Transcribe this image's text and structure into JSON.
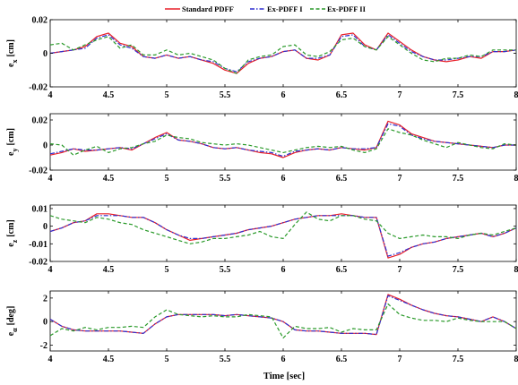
{
  "legend": {
    "items": [
      {
        "label": "Standard PDFF",
        "color": "#e8202a",
        "dash": "solid"
      },
      {
        "label": "Ex-PDFF I",
        "color": "#2f2fd0",
        "dash": "dashdot"
      },
      {
        "label": "Ex-PDFF II",
        "color": "#2a9a2a",
        "dash": "dashed"
      }
    ]
  },
  "xlabel": "Time [sec]",
  "chart_data": [
    {
      "type": "line",
      "ylabel_main": "e",
      "ylabel_sub": "x",
      "ylabel_unit": "[cm]",
      "xlim": [
        4,
        8
      ],
      "ylim": [
        -0.02,
        0.02
      ],
      "xticks": [
        "4",
        "4.5",
        "5",
        "5.5",
        "6",
        "6.5",
        "7",
        "7.5",
        "8"
      ],
      "yticks": [
        {
          "v": 0.02,
          "label": "0.02"
        },
        {
          "v": 0,
          "label": "0"
        },
        {
          "v": -0.02,
          "label": "-0.02"
        }
      ],
      "x": [
        4.0,
        4.1,
        4.2,
        4.3,
        4.4,
        4.5,
        4.6,
        4.7,
        4.8,
        4.9,
        5.0,
        5.1,
        5.2,
        5.3,
        5.4,
        5.5,
        5.6,
        5.7,
        5.8,
        5.9,
        6.0,
        6.1,
        6.2,
        6.3,
        6.4,
        6.5,
        6.6,
        6.7,
        6.8,
        6.9,
        7.0,
        7.1,
        7.2,
        7.3,
        7.4,
        7.5,
        7.6,
        7.7,
        7.8,
        7.9,
        8.0
      ],
      "series": [
        {
          "name": "Standard PDFF",
          "values": [
            0.0,
            0.001,
            0.002,
            0.004,
            0.01,
            0.012,
            0.006,
            0.004,
            -0.002,
            -0.003,
            -0.001,
            -0.003,
            -0.002,
            -0.004,
            -0.006,
            -0.01,
            -0.012,
            -0.006,
            -0.003,
            -0.002,
            0.001,
            0.002,
            -0.003,
            -0.004,
            -0.001,
            0.011,
            0.012,
            0.005,
            0.002,
            0.012,
            0.007,
            0.002,
            -0.002,
            -0.004,
            -0.005,
            -0.004,
            -0.002,
            -0.003,
            0.001,
            0.001,
            0.002
          ]
        },
        {
          "name": "Ex-PDFF I",
          "values": [
            0.0,
            0.001,
            0.002,
            0.003,
            0.009,
            0.011,
            0.005,
            0.003,
            -0.002,
            -0.003,
            -0.001,
            -0.003,
            -0.002,
            -0.004,
            -0.005,
            -0.009,
            -0.011,
            -0.005,
            -0.003,
            -0.002,
            0.001,
            0.002,
            -0.003,
            -0.003,
            -0.001,
            0.01,
            0.011,
            0.004,
            0.002,
            0.011,
            0.006,
            0.001,
            -0.002,
            -0.004,
            -0.004,
            -0.003,
            -0.002,
            -0.002,
            0.001,
            0.001,
            0.002
          ]
        },
        {
          "name": "Ex-PDFF II",
          "values": [
            0.005,
            0.006,
            0.002,
            0.005,
            0.008,
            0.01,
            0.003,
            0.005,
            -0.001,
            -0.001,
            0.002,
            -0.001,
            0.0,
            -0.002,
            -0.004,
            -0.009,
            -0.012,
            -0.004,
            -0.002,
            -0.001,
            0.004,
            0.005,
            -0.001,
            -0.002,
            0.001,
            0.008,
            0.009,
            0.004,
            0.002,
            0.01,
            0.005,
            0.0,
            -0.004,
            -0.005,
            -0.003,
            -0.003,
            -0.001,
            -0.002,
            0.002,
            0.002,
            0.002
          ]
        }
      ]
    },
    {
      "type": "line",
      "ylabel_main": "e",
      "ylabel_sub": "y",
      "ylabel_unit": "[cm]",
      "xlim": [
        4,
        8
      ],
      "ylim": [
        -0.02,
        0.025
      ],
      "xticks": [
        "4",
        "4.5",
        "5",
        "5.5",
        "6",
        "6.5",
        "7",
        "7.5",
        "8"
      ],
      "yticks": [
        {
          "v": 0.02,
          "label": "0.02"
        },
        {
          "v": 0,
          "label": "0"
        },
        {
          "v": -0.02,
          "label": "-0.02"
        }
      ],
      "x": [
        4.0,
        4.1,
        4.2,
        4.3,
        4.4,
        4.5,
        4.6,
        4.7,
        4.8,
        4.9,
        5.0,
        5.1,
        5.2,
        5.3,
        5.4,
        5.5,
        5.6,
        5.7,
        5.8,
        5.9,
        6.0,
        6.1,
        6.2,
        6.3,
        6.4,
        6.5,
        6.6,
        6.7,
        6.8,
        6.9,
        7.0,
        7.1,
        7.2,
        7.3,
        7.4,
        7.5,
        7.6,
        7.7,
        7.8,
        7.9,
        8.0
      ],
      "series": [
        {
          "name": "Standard PDFF",
          "values": [
            -0.008,
            -0.006,
            -0.003,
            -0.005,
            -0.004,
            -0.003,
            -0.002,
            -0.004,
            0.001,
            0.006,
            0.01,
            0.004,
            0.003,
            0.001,
            -0.002,
            -0.003,
            -0.002,
            -0.004,
            -0.006,
            -0.007,
            -0.01,
            -0.006,
            -0.004,
            -0.003,
            -0.004,
            -0.002,
            -0.003,
            -0.004,
            -0.002,
            0.019,
            0.016,
            0.009,
            0.006,
            0.003,
            0.002,
            0.001,
            0.0,
            -0.001,
            -0.002,
            0.0,
            0.0
          ]
        },
        {
          "name": "Ex-PDFF I",
          "values": [
            -0.007,
            -0.005,
            -0.003,
            -0.004,
            -0.004,
            -0.003,
            -0.002,
            -0.003,
            0.001,
            0.005,
            0.009,
            0.004,
            0.003,
            0.001,
            -0.002,
            -0.003,
            -0.002,
            -0.004,
            -0.005,
            -0.006,
            -0.009,
            -0.005,
            -0.004,
            -0.003,
            -0.004,
            -0.002,
            -0.003,
            -0.003,
            -0.002,
            0.017,
            0.015,
            0.008,
            0.005,
            0.003,
            0.002,
            0.001,
            0.0,
            -0.001,
            -0.002,
            0.0,
            0.0
          ]
        },
        {
          "name": "Ex-PDFF II",
          "values": [
            0.001,
            0.0,
            -0.008,
            -0.004,
            -0.001,
            -0.006,
            -0.003,
            -0.002,
            0.001,
            0.003,
            0.008,
            0.006,
            0.005,
            0.002,
            0.001,
            0.0,
            0.001,
            0.0,
            -0.002,
            -0.004,
            -0.006,
            -0.004,
            -0.002,
            -0.001,
            -0.002,
            -0.001,
            -0.004,
            -0.006,
            -0.003,
            0.013,
            0.01,
            0.008,
            0.004,
            0.001,
            -0.002,
            0.002,
            0.0,
            -0.002,
            -0.003,
            0.001,
            0.0
          ]
        }
      ]
    },
    {
      "type": "line",
      "ylabel_main": "e",
      "ylabel_sub": "z",
      "ylabel_unit": "[cm]",
      "xlim": [
        4,
        8
      ],
      "ylim": [
        -0.02,
        0.012
      ],
      "xticks": [
        "4",
        "4.5",
        "5",
        "5.5",
        "6",
        "6.5",
        "7",
        "7.5",
        "8"
      ],
      "yticks": [
        {
          "v": 0.01,
          "label": "0.01"
        },
        {
          "v": 0,
          "label": "0"
        },
        {
          "v": -0.01,
          "label": "-0.01"
        },
        {
          "v": -0.02,
          "label": "-0.02"
        }
      ],
      "x": [
        4.0,
        4.1,
        4.2,
        4.3,
        4.4,
        4.5,
        4.6,
        4.7,
        4.8,
        4.9,
        5.0,
        5.1,
        5.2,
        5.3,
        5.4,
        5.5,
        5.6,
        5.7,
        5.8,
        5.9,
        6.0,
        6.1,
        6.2,
        6.3,
        6.4,
        6.5,
        6.6,
        6.7,
        6.8,
        6.9,
        7.0,
        7.1,
        7.2,
        7.3,
        7.4,
        7.5,
        7.6,
        7.7,
        7.8,
        7.9,
        8.0
      ],
      "series": [
        {
          "name": "Standard PDFF",
          "values": [
            -0.003,
            -0.001,
            0.002,
            0.003,
            0.007,
            0.007,
            0.006,
            0.005,
            0.005,
            0.002,
            -0.002,
            -0.005,
            -0.008,
            -0.007,
            -0.006,
            -0.005,
            -0.004,
            -0.002,
            -0.001,
            0.0,
            0.002,
            0.004,
            0.005,
            0.006,
            0.006,
            0.007,
            0.006,
            0.005,
            0.005,
            -0.018,
            -0.016,
            -0.012,
            -0.01,
            -0.009,
            -0.007,
            -0.006,
            -0.005,
            -0.004,
            -0.006,
            -0.004,
            -0.001
          ]
        },
        {
          "name": "Ex-PDFF I",
          "values": [
            -0.003,
            -0.001,
            0.002,
            0.003,
            0.006,
            0.006,
            0.006,
            0.005,
            0.005,
            0.002,
            -0.002,
            -0.005,
            -0.007,
            -0.007,
            -0.006,
            -0.005,
            -0.004,
            -0.002,
            -0.001,
            0.0,
            0.002,
            0.004,
            0.005,
            0.006,
            0.006,
            0.006,
            0.006,
            0.005,
            0.005,
            -0.017,
            -0.015,
            -0.012,
            -0.01,
            -0.009,
            -0.007,
            -0.006,
            -0.005,
            -0.004,
            -0.006,
            -0.004,
            -0.001
          ]
        },
        {
          "name": "Ex-PDFF II",
          "values": [
            0.006,
            0.004,
            0.003,
            0.002,
            0.005,
            0.004,
            0.002,
            0.001,
            -0.002,
            -0.004,
            -0.006,
            -0.008,
            -0.01,
            -0.009,
            -0.007,
            -0.007,
            -0.006,
            -0.005,
            -0.003,
            -0.006,
            -0.007,
            0.001,
            0.008,
            0.004,
            0.003,
            0.006,
            0.006,
            0.004,
            0.003,
            -0.004,
            -0.007,
            -0.006,
            -0.005,
            -0.006,
            -0.006,
            -0.007,
            -0.005,
            -0.004,
            -0.005,
            -0.003,
            -0.001
          ]
        }
      ]
    },
    {
      "type": "line",
      "ylabel_main": "e",
      "ylabel_sub": "α",
      "ylabel_unit": "[deg]",
      "xlim": [
        4,
        8
      ],
      "ylim": [
        -2.5,
        2.6
      ],
      "xticks": [
        "4",
        "4.5",
        "5",
        "5.5",
        "6",
        "6.5",
        "7",
        "7.5",
        "8"
      ],
      "yticks": [
        {
          "v": 2,
          "label": "2"
        },
        {
          "v": 0,
          "label": "0"
        },
        {
          "v": -2,
          "label": "-2"
        }
      ],
      "x": [
        4.0,
        4.1,
        4.2,
        4.3,
        4.4,
        4.5,
        4.6,
        4.7,
        4.8,
        4.9,
        5.0,
        5.1,
        5.2,
        5.3,
        5.4,
        5.5,
        5.6,
        5.7,
        5.8,
        5.9,
        6.0,
        6.1,
        6.2,
        6.3,
        6.4,
        6.5,
        6.6,
        6.7,
        6.8,
        6.9,
        7.0,
        7.1,
        7.2,
        7.3,
        7.4,
        7.5,
        7.6,
        7.7,
        7.8,
        7.9,
        8.0
      ],
      "series": [
        {
          "name": "Standard PDFF",
          "values": [
            0.2,
            -0.4,
            -0.7,
            -0.8,
            -0.8,
            -0.8,
            -0.8,
            -0.9,
            -1.0,
            -0.2,
            0.4,
            0.6,
            0.6,
            0.6,
            0.6,
            0.5,
            0.6,
            0.5,
            0.4,
            0.3,
            0.0,
            -0.7,
            -0.8,
            -0.8,
            -0.9,
            -1.0,
            -1.0,
            -1.0,
            -1.1,
            2.3,
            1.9,
            1.4,
            1.0,
            0.7,
            0.5,
            0.4,
            0.2,
            0.0,
            0.4,
            0.0,
            -0.6
          ]
        },
        {
          "name": "Ex-PDFF I",
          "values": [
            0.2,
            -0.4,
            -0.7,
            -0.8,
            -0.8,
            -0.8,
            -0.8,
            -0.9,
            -1.0,
            -0.2,
            0.4,
            0.6,
            0.6,
            0.6,
            0.6,
            0.5,
            0.6,
            0.5,
            0.4,
            0.3,
            0.0,
            -0.7,
            -0.8,
            -0.8,
            -0.9,
            -1.0,
            -1.0,
            -1.0,
            -1.1,
            2.2,
            1.8,
            1.4,
            1.0,
            0.7,
            0.5,
            0.4,
            0.2,
            0.0,
            0.4,
            0.0,
            -0.6
          ]
        },
        {
          "name": "Ex-PDFF II",
          "values": [
            -1.2,
            -0.6,
            -0.8,
            -0.5,
            -0.7,
            -0.5,
            -0.5,
            -0.4,
            -0.5,
            0.4,
            1.0,
            0.6,
            0.5,
            0.4,
            0.5,
            0.4,
            0.4,
            0.6,
            0.5,
            0.4,
            -1.4,
            -0.4,
            -0.6,
            -0.6,
            -0.5,
            -0.9,
            -0.6,
            -0.7,
            -0.7,
            1.5,
            0.6,
            0.3,
            0.1,
            0.1,
            0.0,
            0.3,
            0.1,
            0.0,
            0.0,
            0.0,
            -0.6
          ]
        }
      ]
    }
  ]
}
